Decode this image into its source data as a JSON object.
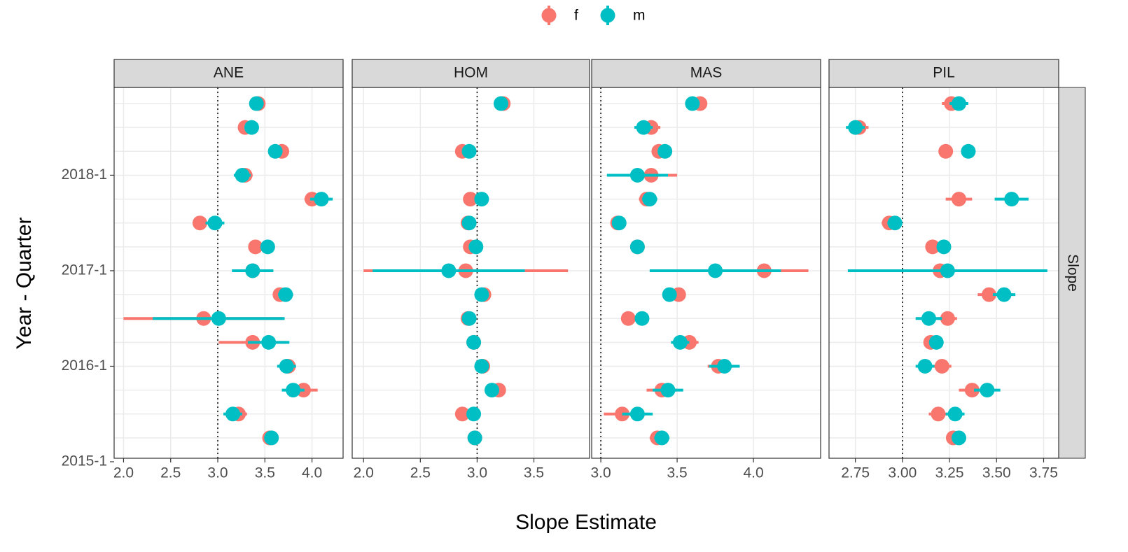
{
  "x_label": "Slope Estimate",
  "y_label": "Year - Quarter",
  "row_strip": "Slope",
  "chart_data": [
    {
      "type": "pointrange",
      "title": "ANE",
      "refline": 3,
      "categories": [
        "2015-1",
        null,
        null,
        null,
        "2016-1",
        null,
        null,
        null,
        "2017-1",
        null,
        null,
        null,
        "2018-1",
        null,
        null,
        null
      ],
      "xlim": [
        1.9,
        4.33
      ],
      "xticks": [
        {
          "value": 2,
          "label": "2.0"
        },
        2.5,
        {
          "value": 3,
          "label": "3.0"
        },
        3.5,
        {
          "value": 4,
          "label": "4.0"
        }
      ],
      "series": [
        {
          "name": "f",
          "color": "#F8766D",
          "values": [
            null,
            3.55,
            3.22,
            3.91,
            3.75,
            3.37,
            2.85,
            3.66,
            3.37,
            3.4,
            2.81,
            4.0,
            3.29,
            3.68,
            3.29,
            3.43
          ],
          "errors": [
            null,
            0.05,
            0.09,
            0.15,
            0.08,
            0.36,
            0.85,
            0.05,
            0.06,
            0.03,
            0.07,
            0.08,
            0.08,
            0.06,
            0.05,
            0.05
          ]
        },
        {
          "name": "m",
          "color": "#00BFC4",
          "values": [
            null,
            3.57,
            3.16,
            3.8,
            3.73,
            3.54,
            3.01,
            3.72,
            3.37,
            3.53,
            2.97,
            4.1,
            3.26,
            3.61,
            3.36,
            3.41
          ],
          "errors": [
            null,
            0.06,
            0.1,
            0.12,
            0.1,
            0.22,
            0.7,
            0.08,
            0.22,
            0.03,
            0.1,
            0.12,
            0.09,
            0.07,
            0.05,
            0.06
          ]
        }
      ]
    },
    {
      "type": "pointrange",
      "title": "HOM",
      "refline": 3,
      "categories": [
        "2015-1",
        null,
        null,
        null,
        "2016-1",
        null,
        null,
        null,
        "2017-1",
        null,
        null,
        null,
        "2018-1",
        null,
        null,
        null
      ],
      "xlim": [
        1.9,
        3.99
      ],
      "xticks": [
        {
          "value": 2,
          "label": "2.0"
        },
        2.5,
        {
          "value": 3,
          "label": "3.0"
        },
        3.5
      ],
      "series": [
        {
          "name": "f",
          "color": "#F8766D",
          "values": [
            null,
            2.98,
            2.87,
            3.19,
            3.05,
            2.97,
            2.92,
            3.06,
            2.9,
            2.94,
            2.92,
            2.94,
            null,
            2.87,
            null,
            3.23
          ],
          "errors": [
            null,
            0.02,
            0.03,
            0.03,
            0.03,
            0.02,
            0.03,
            0.03,
            0.9,
            0.03,
            0.03,
            0.05,
            null,
            0.04,
            null,
            0.03
          ]
        },
        {
          "name": "m",
          "color": "#00BFC4",
          "values": [
            null,
            2.98,
            2.97,
            3.13,
            3.04,
            2.97,
            2.93,
            3.04,
            2.75,
            2.99,
            2.93,
            3.04,
            null,
            2.93,
            null,
            3.21
          ],
          "errors": [
            null,
            0.02,
            0.03,
            0.03,
            0.03,
            0.02,
            0.03,
            0.03,
            0.67,
            0.03,
            0.03,
            0.05,
            null,
            0.04,
            null,
            0.03
          ]
        }
      ]
    },
    {
      "type": "pointrange",
      "title": "MAS",
      "refline": 3,
      "categories": [
        "2015-1",
        null,
        null,
        null,
        "2016-1",
        null,
        null,
        null,
        "2017-1",
        null,
        null,
        null,
        "2018-1",
        null,
        null,
        null
      ],
      "xlim": [
        2.94,
        4.44
      ],
      "xticks": [
        {
          "value": 3,
          "label": "3.0"
        },
        3.5,
        {
          "value": 4,
          "label": "4.0"
        }
      ],
      "series": [
        {
          "name": "f",
          "color": "#F8766D",
          "values": [
            null,
            3.37,
            3.14,
            3.4,
            3.77,
            3.58,
            3.18,
            3.51,
            4.07,
            3.24,
            3.11,
            3.3,
            3.33,
            3.38,
            3.33,
            3.65
          ],
          "errors": [
            null,
            0.05,
            0.12,
            0.1,
            0.07,
            0.06,
            0.02,
            0.03,
            0.29,
            0.02,
            0.02,
            0.05,
            0.17,
            0.03,
            0.06,
            0.04
          ]
        },
        {
          "name": "m",
          "color": "#00BFC4",
          "values": [
            null,
            3.4,
            3.24,
            3.44,
            3.81,
            3.52,
            3.27,
            3.45,
            3.75,
            3.24,
            3.12,
            3.32,
            3.24,
            3.42,
            3.28,
            3.6
          ],
          "errors": [
            null,
            0.05,
            0.1,
            0.1,
            0.1,
            0.06,
            0.02,
            0.03,
            0.43,
            0.02,
            0.02,
            0.05,
            0.2,
            0.03,
            0.06,
            0.04
          ]
        }
      ]
    },
    {
      "type": "pointrange",
      "title": "PIL",
      "refline": 3,
      "categories": [
        "2015-1",
        null,
        null,
        null,
        "2016-1",
        null,
        null,
        null,
        "2017-1",
        null,
        null,
        null,
        "2018-1",
        null,
        null,
        null
      ],
      "xlim": [
        2.61,
        3.83
      ],
      "xticks": [
        2.75,
        {
          "value": 3,
          "label": "3.00"
        },
        3.25,
        {
          "value": 3.5,
          "label": "3.50"
        },
        3.75
      ],
      "series": [
        {
          "name": "f",
          "color": "#F8766D",
          "values": [
            null,
            3.27,
            3.19,
            3.37,
            3.21,
            3.15,
            3.24,
            3.46,
            3.2,
            3.16,
            2.93,
            3.3,
            null,
            3.23,
            2.77,
            3.26
          ],
          "errors": [
            null,
            0.03,
            0.05,
            0.07,
            0.05,
            0.03,
            0.05,
            0.06,
            0.1,
            0.02,
            0.04,
            0.07,
            null,
            0.01,
            0.05,
            0.05
          ]
        },
        {
          "name": "m",
          "color": "#00BFC4",
          "values": [
            null,
            3.3,
            3.28,
            3.45,
            3.12,
            3.18,
            3.14,
            3.54,
            3.24,
            3.22,
            2.96,
            3.58,
            null,
            3.35,
            2.75,
            3.3
          ],
          "errors": [
            null,
            0.03,
            0.05,
            0.07,
            0.05,
            0.03,
            0.07,
            0.06,
            0.53,
            0.02,
            0.04,
            0.09,
            null,
            0.01,
            0.05,
            0.05
          ]
        }
      ]
    }
  ]
}
